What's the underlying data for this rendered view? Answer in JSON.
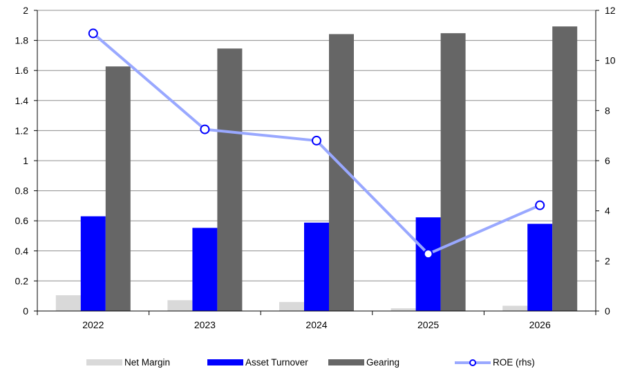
{
  "chart_data": {
    "type": "bar",
    "title": "",
    "xlabel": "",
    "ylabel": "",
    "categories": [
      "2022",
      "2023",
      "2024",
      "2025",
      "2026"
    ],
    "ylim": [
      0,
      2
    ],
    "y_ticks": [
      "0",
      "0.2",
      "0.4",
      "0.6",
      "0.8",
      "1",
      "1.2",
      "1.4",
      "1.6",
      "1.8",
      "2"
    ],
    "y2lim": [
      0,
      12
    ],
    "y2_ticks": [
      "0",
      "2",
      "4",
      "6",
      "8",
      "10",
      "12"
    ],
    "grid": true,
    "legend_position": "bottom",
    "series": [
      {
        "name": "Net Margin",
        "type": "bar",
        "axis": "left",
        "color": "#d9d9d9",
        "values": [
          0.105,
          0.072,
          0.06,
          0.018,
          0.035
        ]
      },
      {
        "name": "Asset Turnover",
        "type": "bar",
        "axis": "left",
        "color": "#0000ff",
        "values": [
          0.63,
          0.553,
          0.588,
          0.623,
          0.58
        ]
      },
      {
        "name": "Gearing",
        "type": "bar",
        "axis": "left",
        "color": "#666666",
        "values": [
          1.627,
          1.746,
          1.842,
          1.848,
          1.893
        ]
      },
      {
        "name": "ROE (rhs)",
        "type": "line",
        "axis": "right",
        "color": "#99a8ff",
        "marker_color": "#0000ff",
        "values": [
          11.08,
          7.25,
          6.8,
          2.28,
          4.22
        ]
      }
    ]
  }
}
